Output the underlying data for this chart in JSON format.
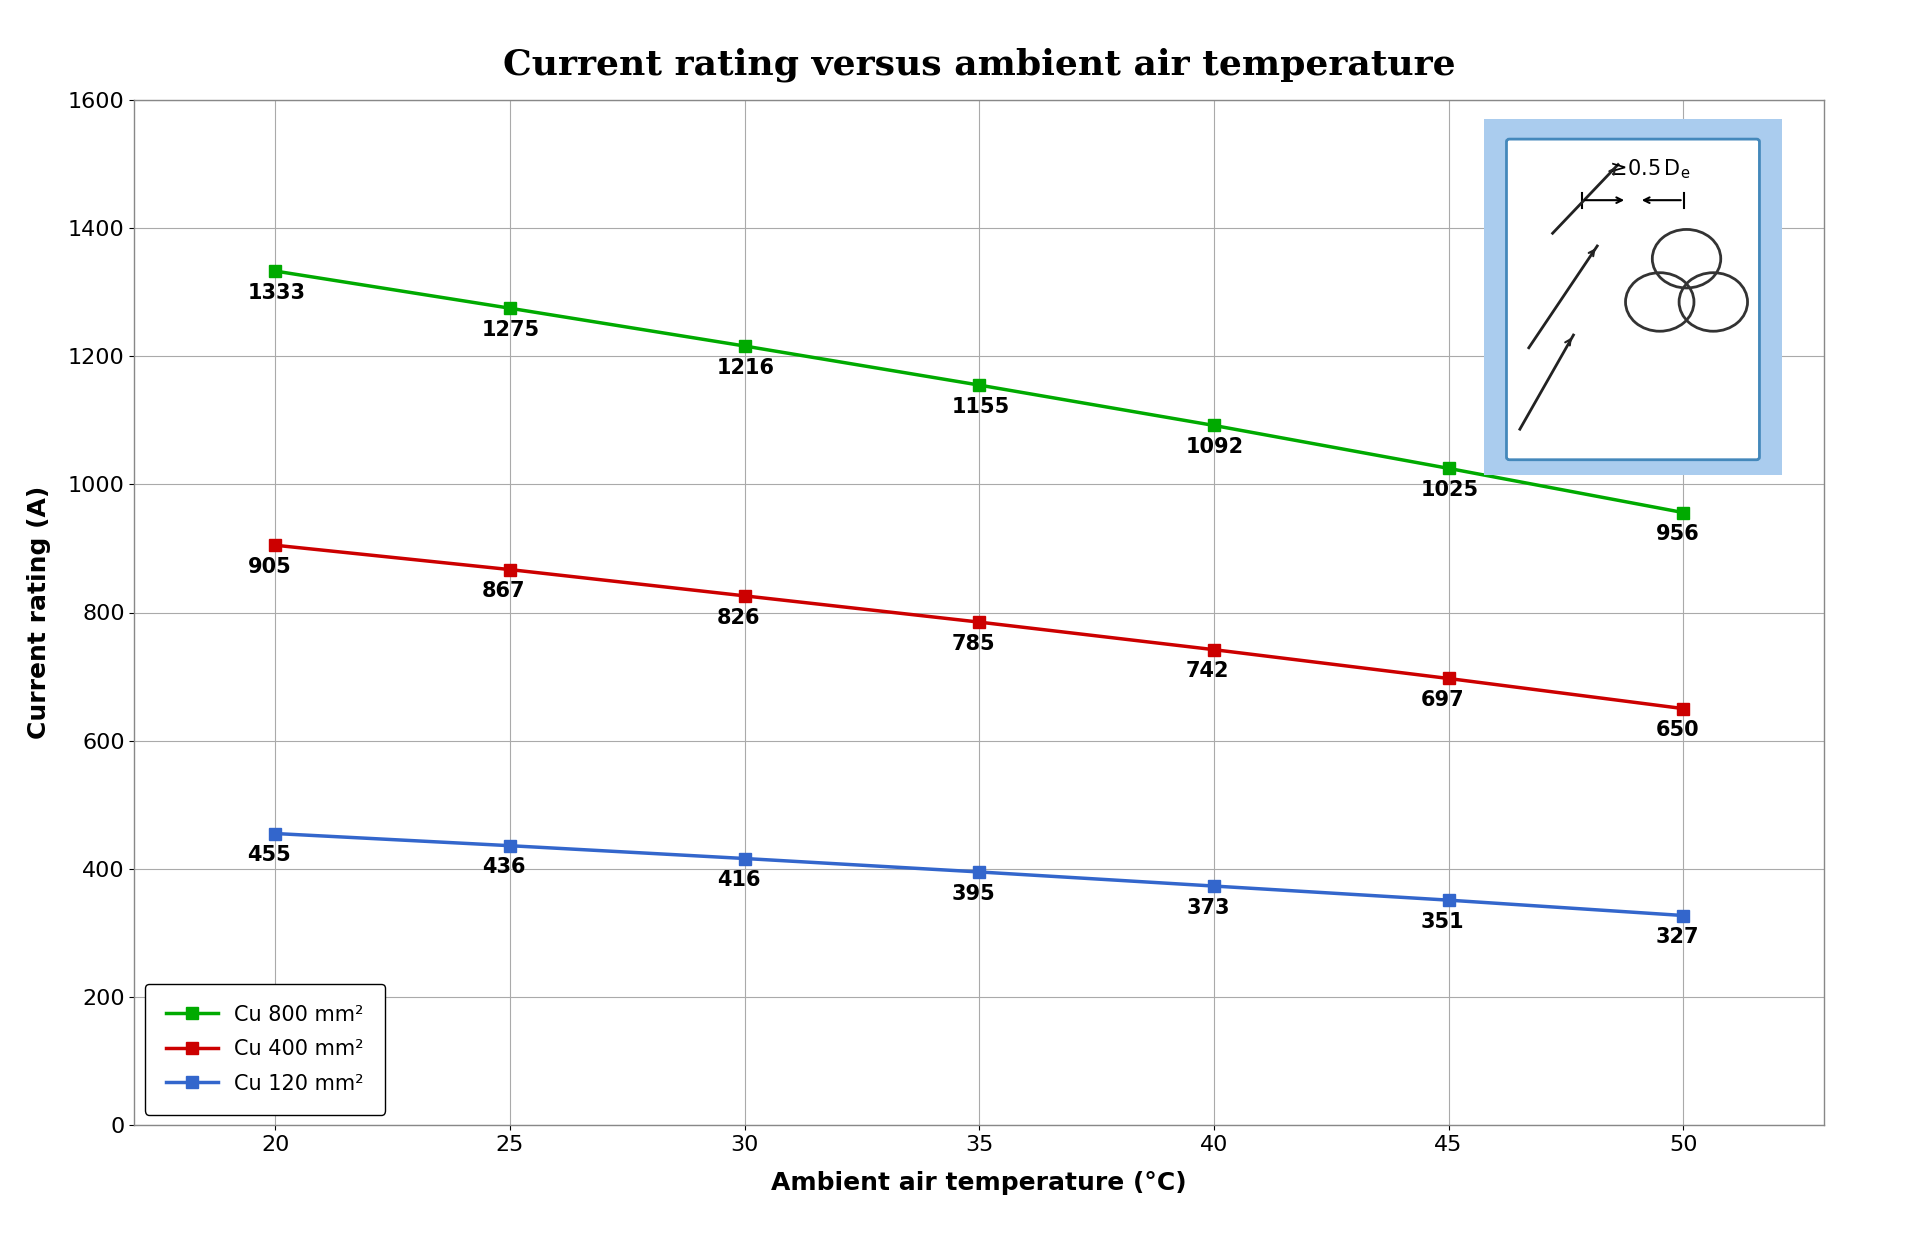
{
  "title": "Current rating versus ambient air temperature",
  "xlabel": "Ambient air temperature (°C)",
  "ylabel": "Current rating (A)",
  "x": [
    20,
    25,
    30,
    35,
    40,
    45,
    50
  ],
  "series": [
    {
      "label": "Cu 800 mm²",
      "color": "#00AA00",
      "values": [
        1333,
        1275,
        1216,
        1155,
        1092,
        1025,
        956
      ]
    },
    {
      "label": "Cu 400 mm²",
      "color": "#CC0000",
      "values": [
        905,
        867,
        826,
        785,
        742,
        697,
        650
      ]
    },
    {
      "label": "Cu 120 mm²",
      "color": "#3366CC",
      "values": [
        455,
        436,
        416,
        395,
        373,
        351,
        327
      ]
    }
  ],
  "ylim": [
    0,
    1600
  ],
  "yticks": [
    0,
    200,
    400,
    600,
    800,
    1000,
    1200,
    1400,
    1600
  ],
  "xlim": [
    17,
    53
  ],
  "xticks": [
    20,
    25,
    30,
    35,
    40,
    45,
    50
  ],
  "bg_color": "#FFFFFF",
  "grid_color": "#AAAAAA",
  "title_fontsize": 26,
  "axis_label_fontsize": 18,
  "tick_fontsize": 16,
  "annotation_fontsize": 15,
  "legend_fontsize": 15,
  "inset_outer_color": "#5599CC",
  "inset_inner_color": "#AACCEE",
  "inset_bg": "#FFFFFF",
  "inset_outer_bg": "#BBDDFF"
}
